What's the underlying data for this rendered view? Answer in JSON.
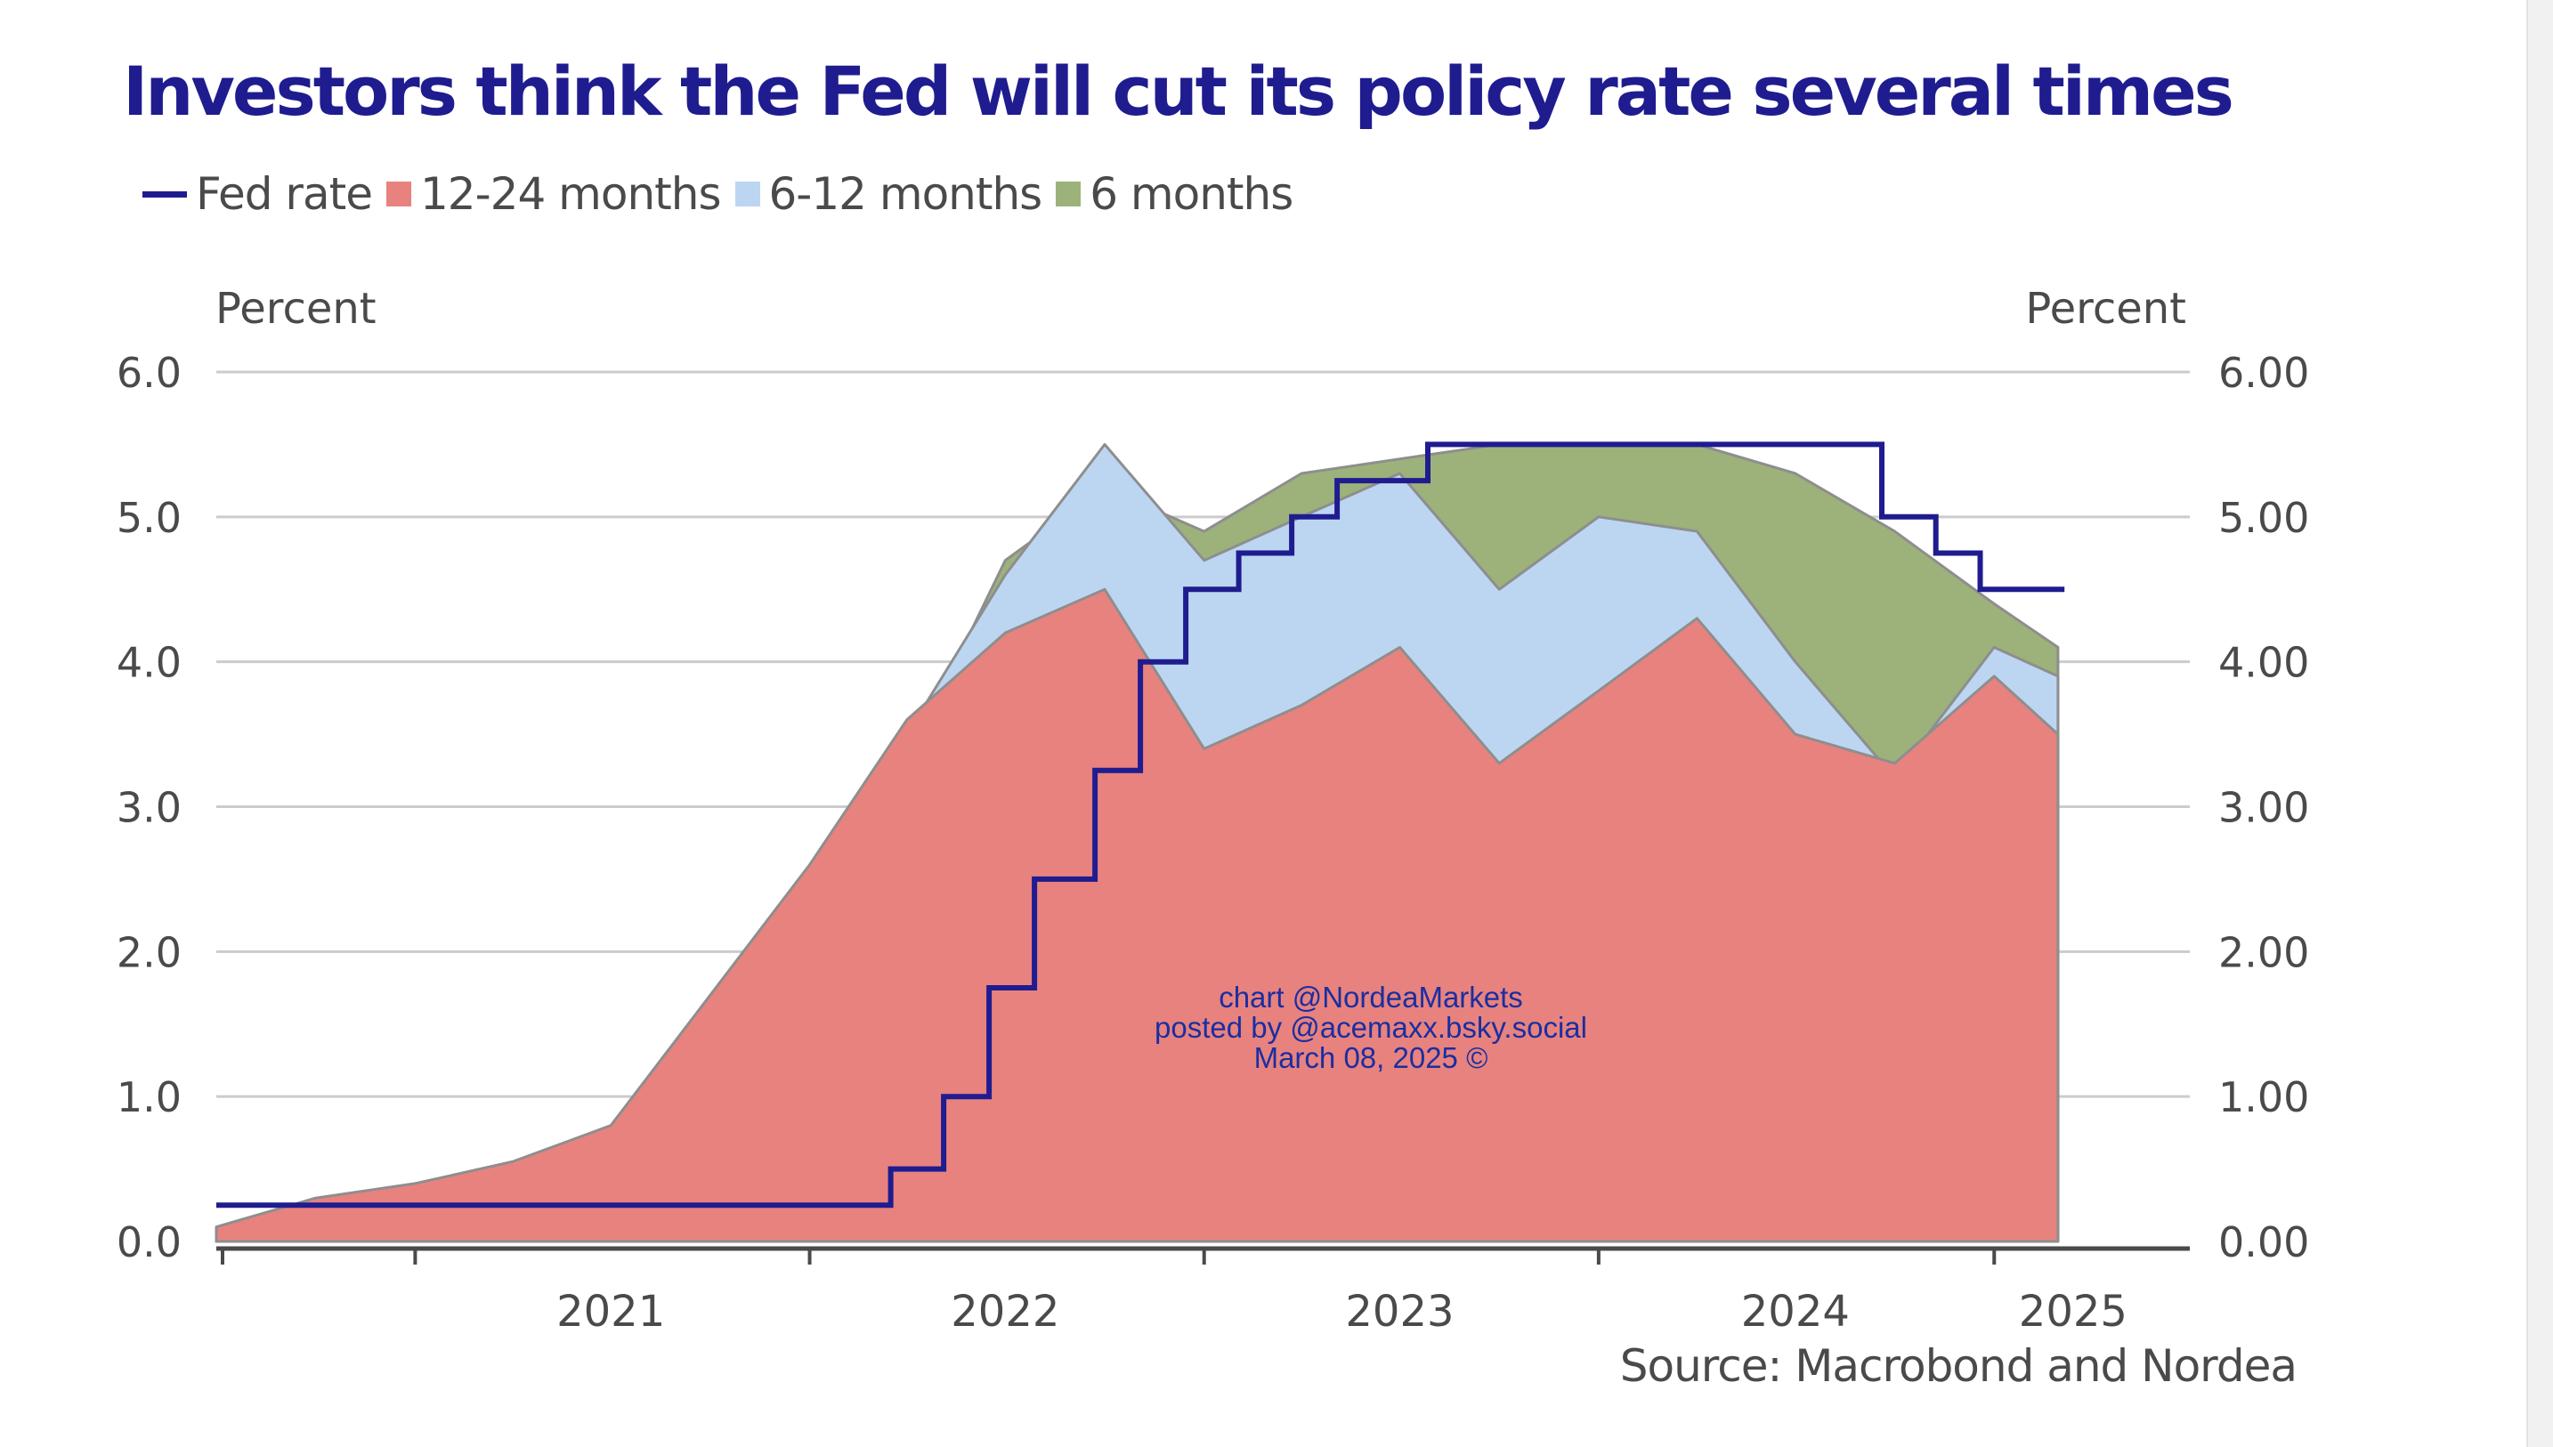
{
  "title": "Investors think the Fed will cut its policy rate several times",
  "source": "Source: Macrobond and Nordea",
  "watermark": [
    "chart @NordeaMarkets",
    "posted by @acemaxx.bsky.social",
    "March 08, 2025 ©"
  ],
  "colors": {
    "fed_rate": "#1f1c8f",
    "m12_24": "#e8827f",
    "m6_12": "#bcd6f2",
    "m6": "#9cb27a",
    "grid": "#cccccc",
    "axis": "#4a4a4a"
  },
  "chart_data": {
    "type": "area",
    "title": "Investors think the Fed will cut its policy rate several times",
    "y_left_label": "Percent",
    "y_right_label": "Percent",
    "ylim": [
      0,
      6
    ],
    "y_ticks_left": [
      "0.0",
      "1.0",
      "2.0",
      "3.0",
      "4.0",
      "5.0",
      "6.0"
    ],
    "y_ticks_right": [
      "0.00",
      "1.00",
      "2.00",
      "3.00",
      "4.00",
      "5.00",
      "6.00"
    ],
    "x_tick_labels": [
      "2021",
      "2022",
      "2023",
      "2024",
      "2025"
    ],
    "xlim": [
      "2020-07",
      "2025-07"
    ],
    "grid": true,
    "legend_position": "top-left",
    "series": [
      {
        "name": "Fed rate",
        "kind": "step-line",
        "color": "#1f1c8f",
        "x": [
          "2020-07-01",
          "2022-03-17",
          "2022-05-05",
          "2022-06-16",
          "2022-07-28",
          "2022-09-22",
          "2022-11-03",
          "2022-12-15",
          "2023-02-02",
          "2023-03-23",
          "2023-05-04",
          "2023-07-27",
          "2024-09-19",
          "2024-11-08",
          "2024-12-19",
          "2025-03-07"
        ],
        "y": [
          0.25,
          0.5,
          1.0,
          1.75,
          2.5,
          3.25,
          4.0,
          4.5,
          4.75,
          5.0,
          5.25,
          5.5,
          5.0,
          4.75,
          4.5,
          4.5
        ]
      },
      {
        "name": "12-24 months",
        "kind": "band",
        "color": "#e8827f",
        "x": [
          "2020-07",
          "2020-10",
          "2021-01",
          "2021-04",
          "2021-07",
          "2021-10",
          "2022-01",
          "2022-04",
          "2022-07",
          "2022-10",
          "2023-01",
          "2023-04",
          "2023-07",
          "2023-10",
          "2024-01",
          "2024-04",
          "2024-07",
          "2024-10",
          "2025-01",
          "2025-03"
        ],
        "y": [
          0.1,
          0.3,
          0.4,
          0.55,
          0.8,
          1.7,
          2.6,
          3.6,
          4.2,
          4.5,
          3.4,
          3.7,
          4.1,
          3.3,
          3.8,
          4.3,
          3.5,
          3.3,
          3.9,
          3.5
        ]
      },
      {
        "name": "6-12 months",
        "kind": "band",
        "color": "#bcd6f2",
        "x": [
          "2020-07",
          "2020-10",
          "2021-01",
          "2021-04",
          "2021-07",
          "2021-10",
          "2022-01",
          "2022-04",
          "2022-07",
          "2022-10",
          "2023-01",
          "2023-04",
          "2023-07",
          "2023-10",
          "2024-01",
          "2024-04",
          "2024-07",
          "2024-10",
          "2025-01",
          "2025-03"
        ],
        "y": [
          0.07,
          0.1,
          0.12,
          0.18,
          0.3,
          1.2,
          2.5,
          3.5,
          4.6,
          5.5,
          4.7,
          5.0,
          5.3,
          4.5,
          5.0,
          4.9,
          4.0,
          3.2,
          4.1,
          3.9
        ]
      },
      {
        "name": "6 months",
        "kind": "band",
        "color": "#9cb27a",
        "x": [
          "2020-07",
          "2020-10",
          "2021-01",
          "2021-04",
          "2021-07",
          "2021-10",
          "2022-01",
          "2022-04",
          "2022-07",
          "2022-10",
          "2023-01",
          "2023-04",
          "2023-07",
          "2023-10",
          "2024-01",
          "2024-04",
          "2024-07",
          "2024-10",
          "2025-01",
          "2025-03"
        ],
        "y": [
          0.06,
          0.08,
          0.1,
          0.15,
          0.3,
          0.8,
          2.0,
          3.3,
          4.7,
          5.2,
          4.9,
          5.3,
          5.4,
          5.5,
          5.5,
          5.5,
          5.3,
          4.9,
          4.4,
          4.1
        ]
      }
    ]
  }
}
